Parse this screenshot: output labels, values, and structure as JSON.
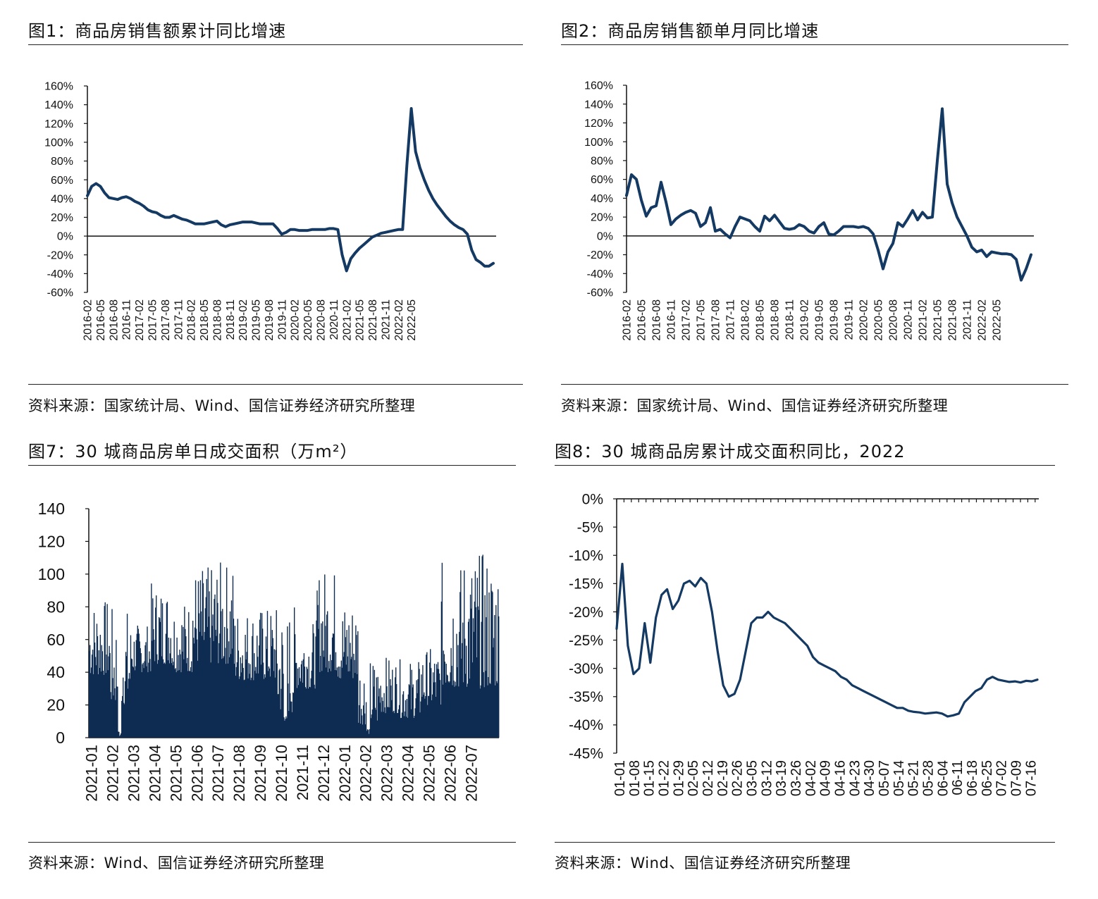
{
  "colors": {
    "series": "#143a63",
    "bar": "#0e2c52",
    "axis": "#111111"
  },
  "panels": [
    {
      "title": "图1：商品房销售额累计同比增速",
      "source": "资料来源：国家统计局、Wind、国信证券经济研究所整理"
    },
    {
      "title": "图2：商品房销售额单月同比增速",
      "source": "资料来源：国家统计局、Wind、国信证券经济研究所整理"
    },
    {
      "title": "图7：30 城商品房单日成交面积（万m²）",
      "source": "资料来源：Wind、国信证券经济研究所整理"
    },
    {
      "title": "图8：30 城商品房累计成交面积同比，2022",
      "source": "资料来源：Wind、国信证券经济研究所整理"
    }
  ],
  "chart_data": [
    {
      "type": "line",
      "x_start": "2016-02",
      "y_ticks": [
        "160%",
        "140%",
        "120%",
        "100%",
        "80%",
        "60%",
        "40%",
        "20%",
        "0%",
        "-20%",
        "-40%",
        "-60%"
      ],
      "ylim": [
        -60,
        160
      ],
      "x_ticks": [
        "2016-02",
        "2016-05",
        "2016-08",
        "2016-11",
        "2017-02",
        "2017-05",
        "2017-08",
        "2017-11",
        "2018-02",
        "2018-05",
        "2018-08",
        "2018-11",
        "2019-02",
        "2019-05",
        "2019-08",
        "2019-11",
        "2020-02",
        "2020-05",
        "2020-08",
        "2020-11",
        "2021-02",
        "2021-05",
        "2021-08",
        "2021-11",
        "2022-02",
        "2022-05"
      ],
      "values": [
        43,
        53,
        56,
        53,
        46,
        41,
        40,
        39,
        41,
        42,
        40,
        37,
        35,
        32,
        28,
        26,
        25,
        22,
        20,
        20,
        22,
        20,
        18,
        17,
        15,
        13,
        13,
        13,
        14,
        15,
        16,
        12,
        10,
        12,
        13,
        14,
        15,
        15,
        15,
        14,
        13,
        13,
        13,
        13,
        8,
        2,
        4,
        7,
        7,
        6,
        6,
        6,
        7,
        7,
        7,
        7,
        8,
        8,
        7,
        -20,
        -37,
        -24,
        -18,
        -13,
        -9,
        -5,
        -1,
        1,
        3,
        4,
        5,
        6,
        7,
        7,
        76,
        136,
        90,
        73,
        60,
        49,
        40,
        33,
        27,
        21,
        16,
        12,
        9,
        7,
        2,
        -15,
        -25,
        -28,
        -32,
        -32,
        -29
      ]
    },
    {
      "type": "line",
      "x_start": "2016-02",
      "y_ticks": [
        "160%",
        "140%",
        "120%",
        "100%",
        "80%",
        "60%",
        "40%",
        "20%",
        "0%",
        "-20%",
        "-40%",
        "-60%"
      ],
      "ylim": [
        -60,
        160
      ],
      "x_ticks": [
        "2016-02",
        "2016-05",
        "2016-08",
        "2016-11",
        "2017-02",
        "2017-05",
        "2017-08",
        "2017-11",
        "2018-02",
        "2018-05",
        "2018-08",
        "2018-11",
        "2019-02",
        "2019-05",
        "2019-08",
        "2019-11",
        "2020-02",
        "2020-05",
        "2020-08",
        "2020-11",
        "2021-02",
        "2021-05",
        "2021-08",
        "2021-11",
        "2022-02",
        "2022-05"
      ],
      "values": [
        43,
        65,
        60,
        38,
        21,
        30,
        32,
        57,
        36,
        12,
        18,
        22,
        25,
        27,
        24,
        10,
        14,
        30,
        5,
        7,
        2,
        -2,
        10,
        20,
        18,
        16,
        10,
        5,
        21,
        16,
        22,
        15,
        8,
        7,
        8,
        12,
        10,
        5,
        3,
        10,
        14,
        2,
        1,
        5,
        10,
        10,
        10,
        9,
        10,
        8,
        2,
        -15,
        -35,
        -17,
        -8,
        14,
        10,
        18,
        27,
        17,
        25,
        19,
        20,
        80,
        135,
        55,
        35,
        20,
        10,
        0,
        -12,
        -17,
        -15,
        -22,
        -17,
        -18,
        -19,
        -19,
        -20,
        -25,
        -47,
        -35,
        -20
      ]
    },
    {
      "type": "bar",
      "y_ticks": [
        "140",
        "120",
        "100",
        "80",
        "60",
        "40",
        "20",
        "0"
      ],
      "ylim": [
        0,
        140
      ],
      "x_ticks": [
        "2021-01",
        "2021-02",
        "2021-03",
        "2021-04",
        "2021-05",
        "2021-06",
        "2021-07",
        "2021-08",
        "2021-09",
        "2021-10",
        "2021-11",
        "2021-12",
        "2022-01",
        "2022-02",
        "2022-03",
        "2022-04",
        "2022-05",
        "2022-06",
        "2022-07"
      ],
      "monthly_envelope": [
        [
          38,
          85
        ],
        [
          20,
          80
        ],
        [
          40,
          70
        ],
        [
          45,
          95
        ],
        [
          40,
          85
        ],
        [
          45,
          105
        ],
        [
          45,
          108
        ],
        [
          35,
          80
        ],
        [
          35,
          80
        ],
        [
          15,
          82
        ],
        [
          30,
          72
        ],
        [
          40,
          105
        ],
        [
          35,
          85
        ],
        [
          8,
          50
        ],
        [
          15,
          50
        ],
        [
          12,
          48
        ],
        [
          20,
          55
        ],
        [
          30,
          108
        ],
        [
          30,
          114
        ]
      ],
      "dips": [
        [
          "2021-02",
          0
        ],
        [
          "2021-10",
          10
        ],
        [
          "2022-02",
          2
        ]
      ]
    },
    {
      "type": "line",
      "y_ticks": [
        "0%",
        "-5%",
        "-10%",
        "-15%",
        "-20%",
        "-25%",
        "-30%",
        "-35%",
        "-40%",
        "-45%"
      ],
      "ylim": [
        -45,
        0
      ],
      "x_ticks": [
        "01-01",
        "01-08",
        "01-15",
        "01-22",
        "01-29",
        "02-05",
        "02-12",
        "02-19",
        "02-26",
        "03-05",
        "03-12",
        "03-19",
        "03-26",
        "04-02",
        "04-09",
        "04-16",
        "04-23",
        "04-30",
        "05-07",
        "05-14",
        "05-21",
        "05-28",
        "06-04",
        "06-11",
        "06-18",
        "06-25",
        "07-02",
        "07-09",
        "07-16"
      ],
      "values": [
        -23,
        -11.5,
        -26,
        -31,
        -30,
        -22,
        -29,
        -21,
        -17,
        -16,
        -19.5,
        -18,
        -15,
        -14.5,
        -15.5,
        -14,
        -15,
        -20,
        -27,
        -33,
        -35,
        -34.5,
        -32,
        -27,
        -22,
        -21,
        -21,
        -20,
        -21,
        -21.5,
        -22,
        -23,
        -24,
        -25,
        -26,
        -28,
        -29,
        -29.5,
        -30,
        -30.5,
        -31.5,
        -32,
        -33,
        -33.5,
        -34,
        -34.5,
        -35,
        -35.5,
        -36,
        -36.5,
        -37,
        -37,
        -37.5,
        -37.7,
        -37.8,
        -38,
        -37.9,
        -37.8,
        -38,
        -38.5,
        -38.3,
        -38,
        -36,
        -35,
        -34,
        -33.5,
        -32,
        -31.5,
        -32,
        -32.2,
        -32.4,
        -32.3,
        -32.5,
        -32.2,
        -32.3,
        -32
      ]
    }
  ]
}
